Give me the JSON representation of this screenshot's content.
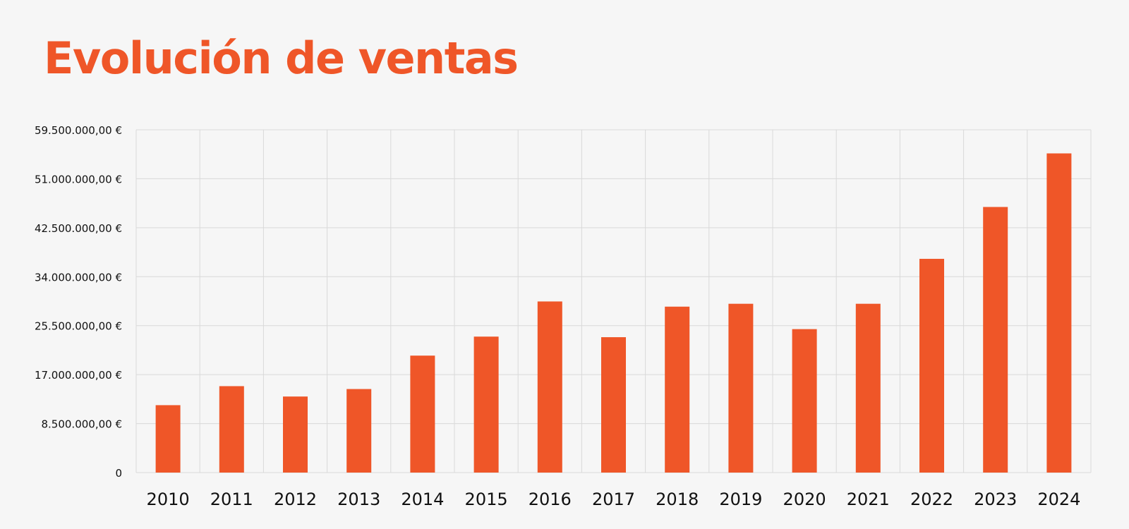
{
  "chart_data": {
    "type": "bar",
    "title": "Evolución de ventas",
    "xlabel": "",
    "ylabel": "",
    "categories": [
      "2010",
      "2011",
      "2012",
      "2013",
      "2014",
      "2015",
      "2016",
      "2017",
      "2018",
      "2019",
      "2020",
      "2021",
      "2022",
      "2023",
      "2024"
    ],
    "values": [
      11700000,
      15000000,
      13200000,
      14500000,
      20300000,
      23600000,
      29700000,
      23500000,
      28800000,
      29300000,
      24900000,
      29300000,
      37100000,
      46100000,
      55400000
    ],
    "ylim": [
      0,
      59500000
    ],
    "yticks": [
      0,
      8500000,
      17000000,
      25500000,
      34000000,
      42500000,
      51000000,
      59500000
    ],
    "ytick_labels": [
      "0",
      "8.500.000,00 €",
      "17.000.000,00 €",
      "25.500.000,00 €",
      "34.000.000,00 €",
      "42.500.000,00 €",
      "51.000.000,00 €",
      "59.500.000,00 €"
    ],
    "grid": true,
    "legend": "none"
  },
  "colors": {
    "bar": "#ef5628",
    "title": "#ef5628",
    "grid": "#d9d9d9",
    "tick_text": "#111111",
    "background": "#f6f6f6"
  }
}
